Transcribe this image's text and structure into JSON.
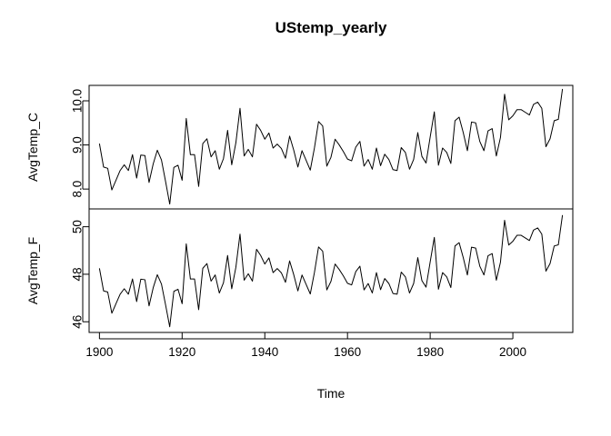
{
  "chart_data": {
    "type": "line",
    "title": "UStemp_yearly",
    "xlabel": "Time",
    "xlim": [
      1897.5,
      2014.5
    ],
    "x_ticks": [
      1900,
      1920,
      1940,
      1960,
      1980,
      2000
    ],
    "x_start": 1900,
    "panels": [
      {
        "ylabel": "AvgTemp_C",
        "ylim": [
          7.55,
          10.35
        ],
        "y_ticks": [
          "8.0",
          "9.0",
          "10.0"
        ],
        "values": [
          9.03,
          8.5,
          8.47,
          7.98,
          8.2,
          8.42,
          8.55,
          8.42,
          8.78,
          8.25,
          8.77,
          8.76,
          8.15,
          8.57,
          8.88,
          8.66,
          8.17,
          7.66,
          8.49,
          8.54,
          8.2,
          9.6,
          8.78,
          8.78,
          8.06,
          9.03,
          9.14,
          8.73,
          8.87,
          8.45,
          8.69,
          9.33,
          8.55,
          9.05,
          9.83,
          8.75,
          8.9,
          8.73,
          9.47,
          9.33,
          9.13,
          9.27,
          8.93,
          9.02,
          8.92,
          8.7,
          9.2,
          8.88,
          8.5,
          8.87,
          8.65,
          8.43,
          8.93,
          9.53,
          9.43,
          8.52,
          8.72,
          9.13,
          9.0,
          8.85,
          8.68,
          8.64,
          8.95,
          9.08,
          8.52,
          8.67,
          8.45,
          8.93,
          8.53,
          8.79,
          8.67,
          8.44,
          8.42,
          8.94,
          8.83,
          8.45,
          8.67,
          9.28,
          8.74,
          8.59,
          9.18,
          9.75,
          8.54,
          8.93,
          8.83,
          8.58,
          9.55,
          9.63,
          9.28,
          8.87,
          9.52,
          9.5,
          9.08,
          8.87,
          9.32,
          9.37,
          8.75,
          9.17,
          10.15,
          9.57,
          9.66,
          9.8,
          9.8,
          9.74,
          9.68,
          9.92,
          9.97,
          9.83,
          8.96,
          9.14,
          9.55,
          9.58,
          10.27
        ]
      },
      {
        "ylabel": "AvgTemp_F",
        "ylim": [
          45.55,
          50.75
        ],
        "y_ticks": [
          "46",
          "48",
          "50"
        ],
        "values": [
          48.25,
          47.3,
          47.25,
          46.36,
          46.76,
          47.16,
          47.39,
          47.16,
          47.8,
          46.85,
          47.79,
          47.77,
          46.67,
          47.43,
          47.98,
          47.59,
          46.71,
          45.79,
          47.28,
          47.37,
          46.76,
          49.28,
          47.8,
          47.8,
          46.51,
          48.25,
          48.45,
          47.71,
          47.97,
          47.21,
          47.64,
          48.79,
          47.39,
          48.29,
          49.69,
          47.75,
          48.02,
          47.71,
          49.05,
          48.79,
          48.43,
          48.69,
          48.07,
          48.24,
          48.06,
          47.66,
          48.56,
          47.98,
          47.3,
          47.97,
          47.57,
          47.17,
          48.07,
          49.15,
          48.97,
          47.34,
          47.7,
          48.43,
          48.2,
          47.93,
          47.62,
          47.55,
          48.11,
          48.34,
          47.34,
          47.61,
          47.21,
          48.07,
          47.35,
          47.82,
          47.61,
          47.19,
          47.16,
          48.09,
          47.89,
          47.21,
          47.61,
          48.7,
          47.73,
          47.46,
          48.52,
          49.55,
          47.37,
          48.07,
          47.89,
          47.44,
          49.19,
          49.33,
          48.7,
          47.97,
          49.14,
          49.1,
          48.34,
          47.97,
          48.78,
          48.87,
          47.75,
          48.51,
          50.27,
          49.23,
          49.39,
          49.64,
          49.64,
          49.53,
          49.42,
          49.86,
          49.95,
          49.69,
          48.13,
          48.45,
          49.19,
          49.24,
          50.49
        ]
      }
    ]
  }
}
